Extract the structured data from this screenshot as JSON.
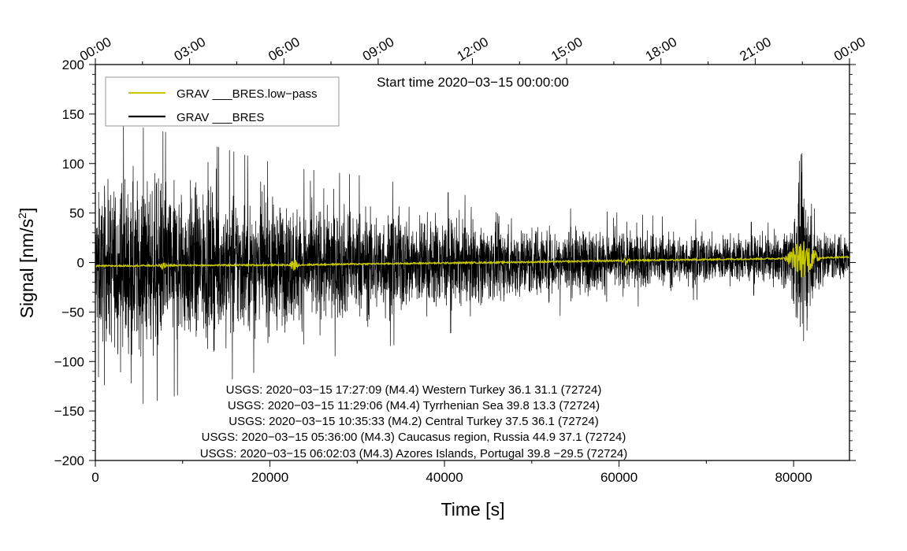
{
  "chart_data": {
    "type": "line",
    "xlabel": "Time [s]",
    "ylabel": "Signal [nm/s",
    "ylabel_sup": "2",
    "ylabel_end": "]",
    "xlim": [
      0,
      86400
    ],
    "ylim": [
      -200,
      200
    ],
    "x_ticks": [
      {
        "value": 0,
        "label": "0"
      },
      {
        "value": 20000,
        "label": "20000"
      },
      {
        "value": 40000,
        "label": "40000"
      },
      {
        "value": 60000,
        "label": "60000"
      },
      {
        "value": 80000,
        "label": "80000"
      }
    ],
    "y_ticks": [
      {
        "value": 200,
        "label": "200"
      },
      {
        "value": 150,
        "label": "150"
      },
      {
        "value": 100,
        "label": "100"
      },
      {
        "value": 50,
        "label": "50"
      },
      {
        "value": 0,
        "label": "0"
      },
      {
        "value": -50,
        "label": "−50"
      },
      {
        "value": -100,
        "label": "−100"
      },
      {
        "value": -150,
        "label": "−150"
      },
      {
        "value": -200,
        "label": "−200"
      }
    ],
    "top_ticks": [
      {
        "value": 0,
        "label": "00:00"
      },
      {
        "value": 10800,
        "label": "03:00"
      },
      {
        "value": 21600,
        "label": "06:00"
      },
      {
        "value": 32400,
        "label": "09:00"
      },
      {
        "value": 43200,
        "label": "12:00"
      },
      {
        "value": 54000,
        "label": "15:00"
      },
      {
        "value": 64800,
        "label": "18:00"
      },
      {
        "value": 75600,
        "label": "21:00"
      },
      {
        "value": 86400,
        "label": "00:00"
      }
    ],
    "start_time": "Start time 2020−03−15 00:00:00",
    "series": [
      {
        "name": "GRAV ___BRES.low−pass",
        "color": "#c8c800",
        "x": [
          0,
          7700,
          10000,
          22800,
          30000,
          40000,
          50000,
          60800,
          65500,
          70000,
          78000,
          81000,
          84000,
          86400
        ],
        "y": [
          -3.5,
          -3,
          -2.8,
          -2.5,
          -1.5,
          -0.5,
          0.5,
          2,
          2.5,
          3,
          4,
          4.5,
          5,
          5.5
        ]
      },
      {
        "name": "GRAV ___BRES",
        "color": "#000000",
        "envelope": {
          "x": [
            0,
            3000,
            8000,
            15000,
            22000,
            30000,
            40000,
            50000,
            60000,
            70000,
            78000,
            79500,
            81000,
            82500,
            84000,
            86400
          ],
          "amplitude": [
            60,
            80,
            75,
            65,
            55,
            50,
            40,
            32,
            27,
            22,
            20,
            30,
            80,
            35,
            22,
            20
          ]
        }
      }
    ],
    "annotations": [
      "USGS: 2020−03−15 17:27:09 (M4.4) Western Turkey 36.1 31.1 (72724)",
      "USGS: 2020−03−15 11:29:06 (M4.4) Tyrrhenian Sea 39.8 13.3 (72724)",
      "USGS: 2020−03−15 10:35:33 (M4.2) Central Turkey 37.5 36.1 (72724)",
      "USGS: 2020−03−15 05:36:00 (M4.3) Caucasus region, Russia 44.9 37.1 (72724)",
      "USGS: 2020−03−15 06:02:03 (M4.3) Azores Islands, Portugal 39.8 −29.5 (72724)"
    ],
    "legend_position": "top-left",
    "grid": false
  }
}
